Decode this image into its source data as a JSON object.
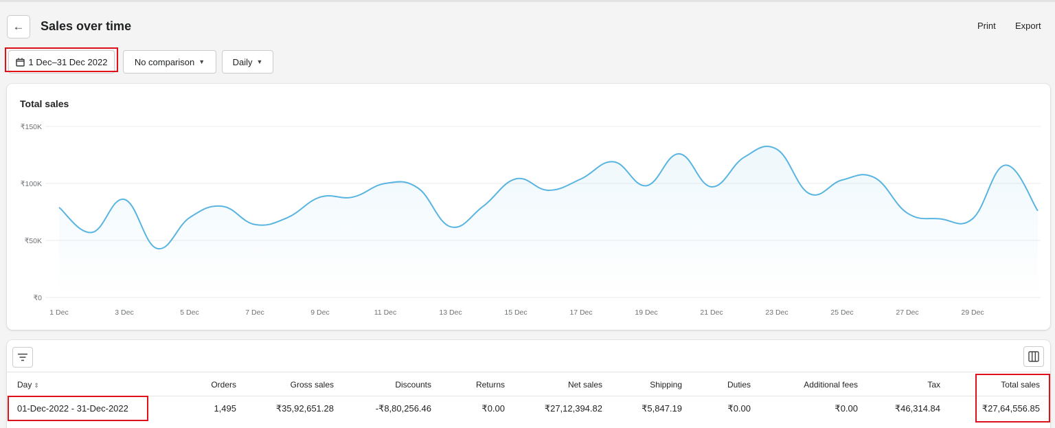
{
  "header": {
    "back_icon": "arrow-left-icon",
    "title": "Sales over time",
    "print_label": "Print",
    "export_label": "Export"
  },
  "filters": {
    "date_icon": "calendar-icon",
    "date_range": "1 Dec–31 Dec 2022",
    "comparison": "No comparison",
    "granularity": "Daily"
  },
  "highlight_color": "#e0101b",
  "chart_data": {
    "type": "area",
    "title": "Total sales",
    "ylim": [
      0,
      150000
    ],
    "y_ticks": [
      "₹0",
      "₹50K",
      "₹100K",
      "₹150K"
    ],
    "x_ticks": [
      "1 Dec",
      "3 Dec",
      "5 Dec",
      "7 Dec",
      "9 Dec",
      "11 Dec",
      "13 Dec",
      "15 Dec",
      "17 Dec",
      "19 Dec",
      "21 Dec",
      "23 Dec",
      "25 Dec",
      "27 Dec",
      "29 Dec"
    ],
    "x": [
      1,
      2,
      3,
      4,
      5,
      6,
      7,
      8,
      9,
      10,
      11,
      12,
      13,
      14,
      15,
      16,
      17,
      18,
      19,
      20,
      21,
      22,
      23,
      24,
      25,
      26,
      27,
      28,
      29,
      30,
      31
    ],
    "values": [
      79000,
      57000,
      86000,
      43000,
      70000,
      80000,
      64000,
      70000,
      88000,
      88000,
      100000,
      96000,
      62000,
      80000,
      104000,
      94000,
      104000,
      119000,
      98000,
      126000,
      97000,
      123000,
      130000,
      91000,
      103000,
      105000,
      74000,
      69000,
      69000,
      116000,
      76000
    ],
    "line_color": "#58b4e0",
    "grid": true
  },
  "table": {
    "filter_icon": "filter-lines-icon",
    "columns_icon": "columns-icon",
    "columns": [
      "Day",
      "Orders",
      "Gross sales",
      "Discounts",
      "Returns",
      "Net sales",
      "Shipping",
      "Duties",
      "Additional fees",
      "Tax",
      "Total sales"
    ],
    "sort_icon": "sort-icon",
    "row": [
      "01-Dec-2022 - 31-Dec-2022",
      "1,495",
      "₹35,92,651.28",
      "-₹8,80,256.46",
      "₹0.00",
      "₹27,12,394.82",
      "₹5,847.19",
      "₹0.00",
      "₹0.00",
      "₹46,314.84",
      "₹27,64,556.85"
    ]
  }
}
